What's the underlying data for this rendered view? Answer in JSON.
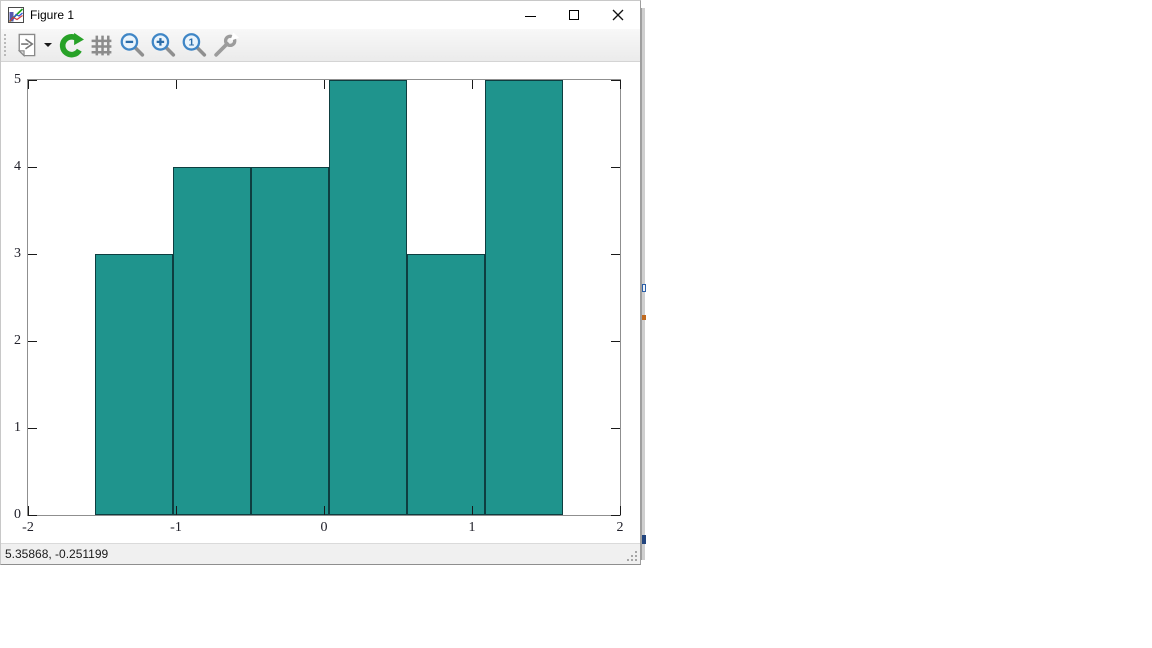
{
  "window": {
    "title": "Figure 1",
    "statusbar_text": "5.35868, -0.251199"
  },
  "toolbar": {
    "icons": [
      "export-page",
      "export-dropdown",
      "refresh-replot",
      "grid-toggle",
      "zoom-out",
      "zoom-in",
      "zoom-original",
      "settings-wrench"
    ]
  },
  "window_controls": [
    "minimize",
    "maximize",
    "close"
  ],
  "colors": {
    "bar_fill": "#1F948D",
    "bar_edge": "#0E3E40",
    "frame_gray": "#8F8F8F",
    "tick_black": "#1A1A1A",
    "refresh_green": "#28A228",
    "magnifier_blue": "#3F86C6",
    "magnifier_glyph_blue": "#2B6CA8",
    "icon_gray": "#8C8C8C"
  },
  "chart_data": {
    "type": "bar",
    "subtype": "histogram",
    "title": "",
    "xlabel": "",
    "ylabel": "",
    "bin_edges": [
      -1.548,
      -1.021,
      -0.493,
      0.034,
      0.561,
      1.088,
      1.616
    ],
    "counts": [
      3,
      4,
      4,
      5,
      3,
      5
    ],
    "xlim": [
      -2,
      2
    ],
    "ylim": [
      0,
      5
    ],
    "xticks": [
      -2,
      -1,
      0,
      1,
      2
    ],
    "yticks": [
      0,
      1,
      2,
      3,
      4,
      5
    ],
    "grid": false,
    "legend": "none",
    "tick_direction": "in",
    "ticks_mirrored": true
  }
}
